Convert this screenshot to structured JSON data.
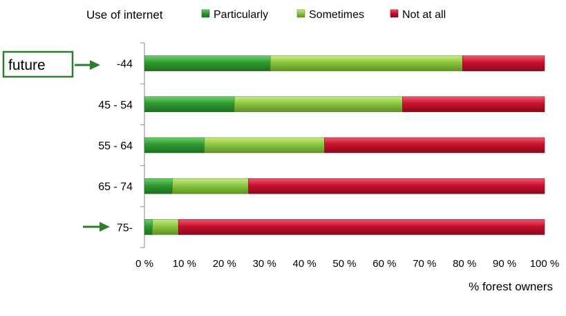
{
  "chart_data": {
    "type": "bar",
    "orientation": "horizontal",
    "stacked": true,
    "legend_title": "Use of internet",
    "legend_position": "top",
    "xlabel": "% forest owners",
    "ylabel": "",
    "xlim": [
      0,
      100
    ],
    "x_ticks": [
      "0 %",
      "10 %",
      "20 %",
      "30 %",
      "40 %",
      "50 %",
      "60 %",
      "70 %",
      "80 %",
      "90 %",
      "100 %"
    ],
    "categories": [
      "-44",
      "45 - 54",
      "55 - 64",
      "65 - 74",
      "75-"
    ],
    "series": [
      {
        "name": "Particularly",
        "color": "#2e9a2e",
        "values": [
          31.5,
          22.5,
          15,
          7,
          2
        ]
      },
      {
        "name": "Sometimes",
        "color": "#8cc63f",
        "values": [
          48,
          42,
          30,
          19,
          6.5
        ]
      },
      {
        "name": "Not at all",
        "color": "#c8102e",
        "values": [
          20.5,
          35.5,
          55,
          74,
          91.5
        ]
      }
    ],
    "grid": false,
    "annotations": [
      {
        "text": "future",
        "type": "boxed-label-arrow",
        "points_to": "-44",
        "color": "#2e7d2e"
      },
      {
        "type": "arrow",
        "points_to": "75-",
        "color": "#2e7d2e"
      }
    ]
  }
}
